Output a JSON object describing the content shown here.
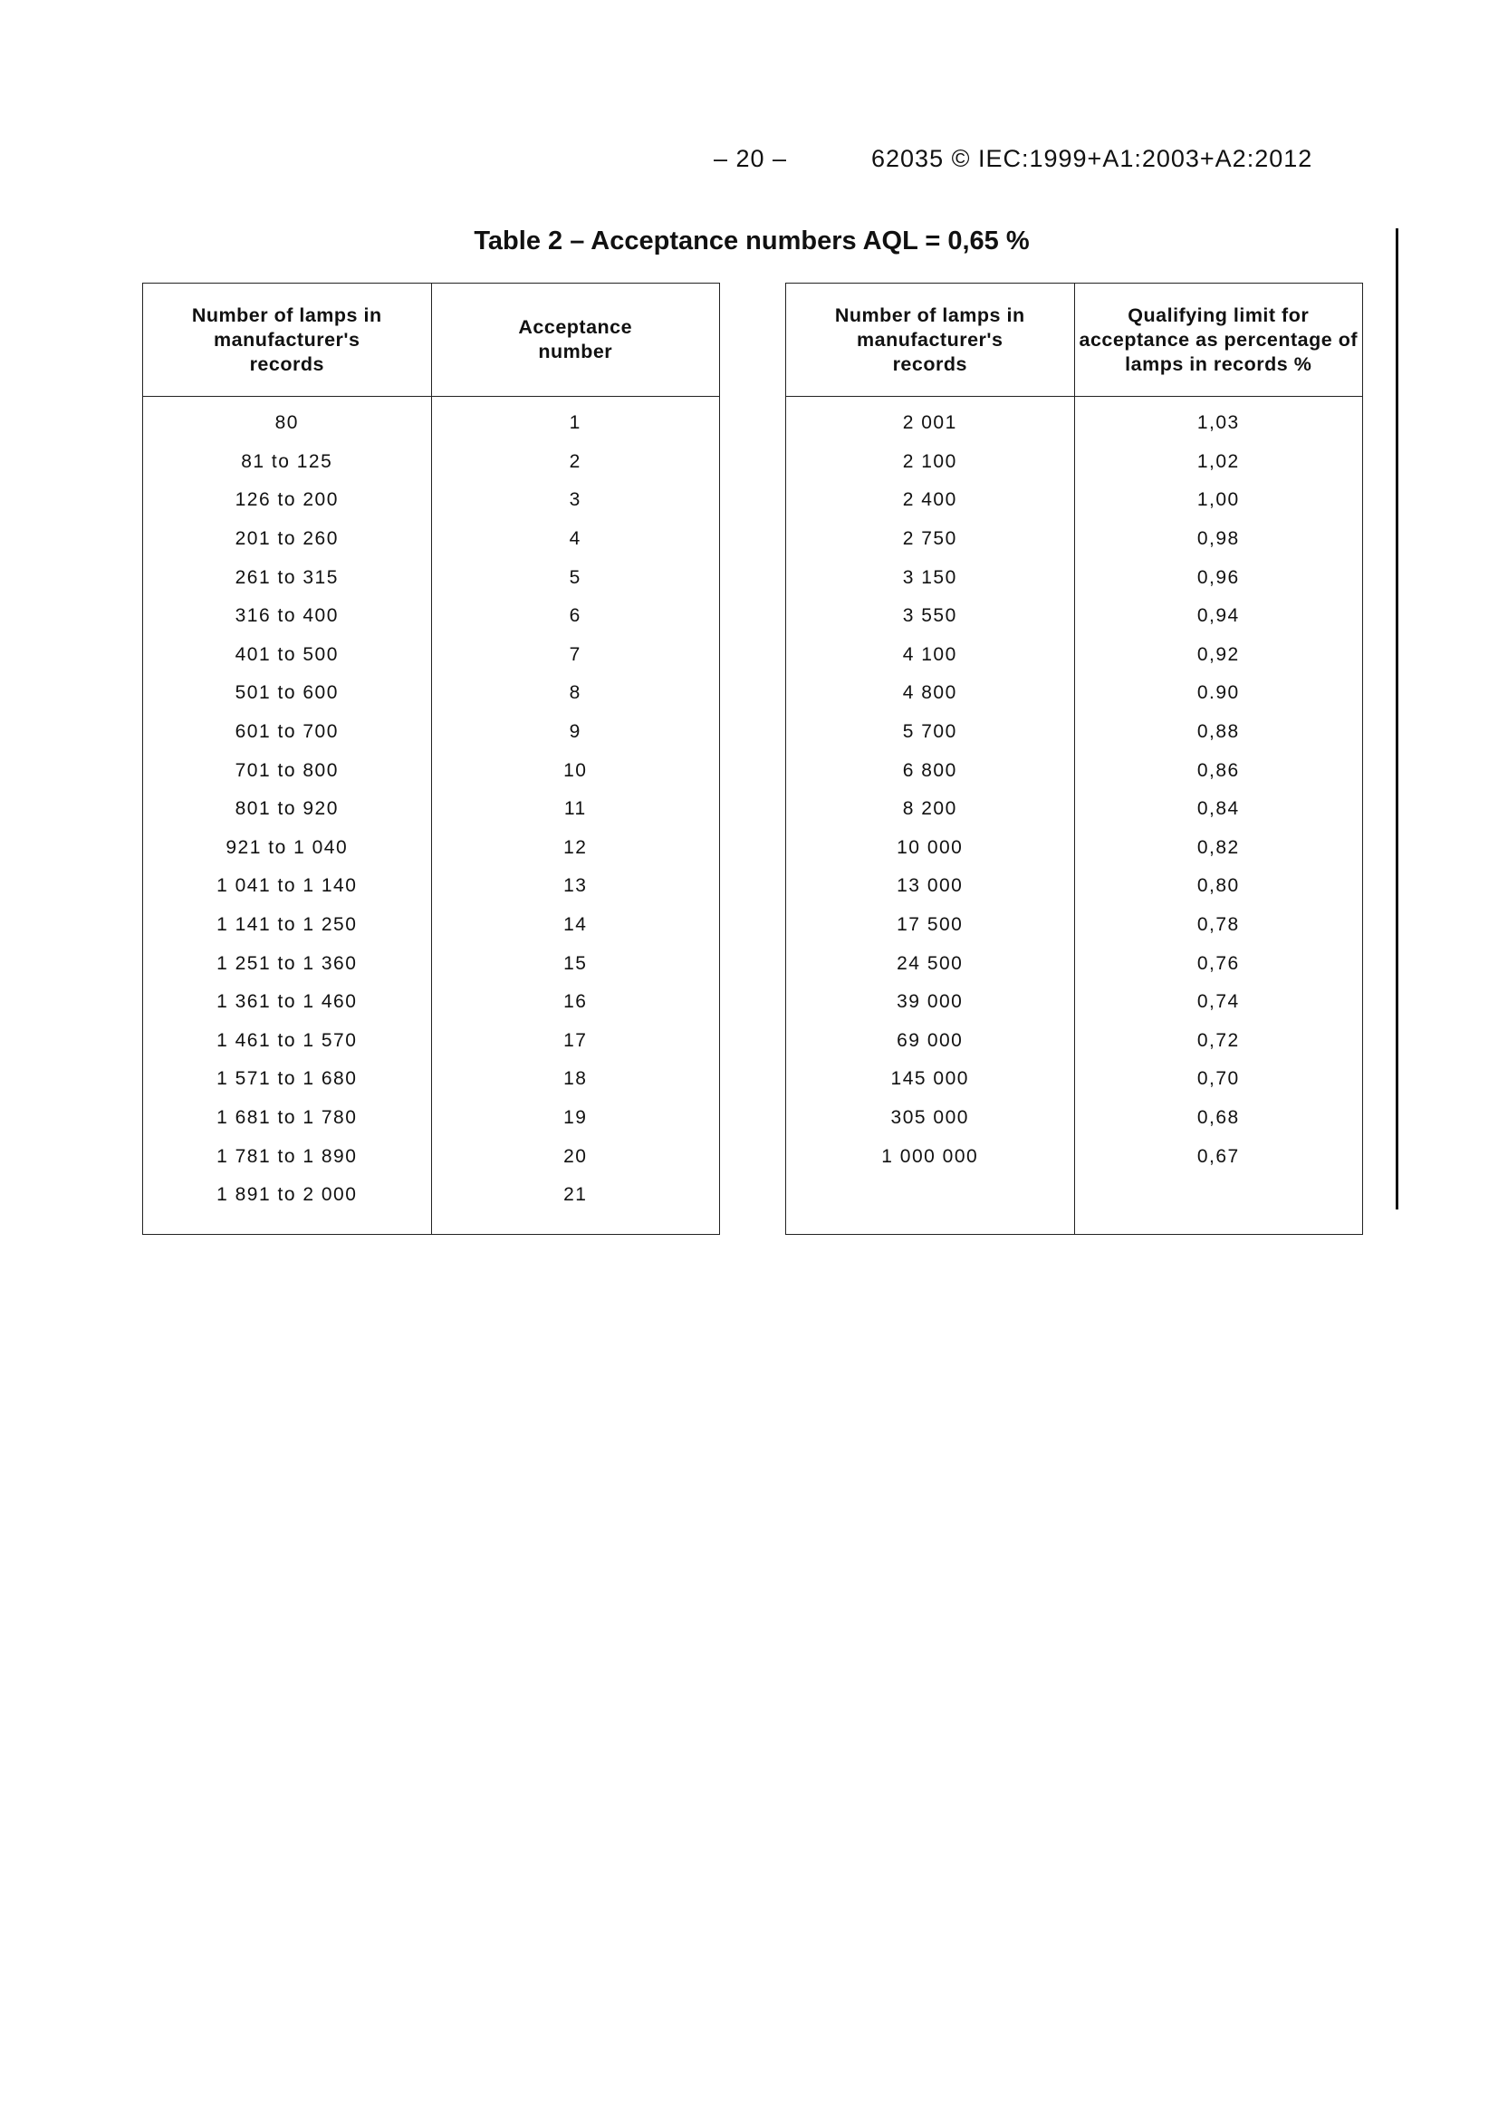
{
  "header": {
    "page_number": "– 20 –",
    "document_reference": "62035 © IEC:1999+A1:2003+A2:2012"
  },
  "title": "Table 2 – Acceptance numbers AQL = 0,65 %",
  "left_table": {
    "columns": [
      "Number of lamps in manufacturer's records",
      "Acceptance number"
    ],
    "rows": [
      [
        "80",
        "1"
      ],
      [
        "81 to 125",
        "2"
      ],
      [
        "126 to 200",
        "3"
      ],
      [
        "201 to 260",
        "4"
      ],
      [
        "261 to 315",
        "5"
      ],
      [
        "316 to 400",
        "6"
      ],
      [
        "401 to 500",
        "7"
      ],
      [
        "501 to 600",
        "8"
      ],
      [
        "601 to 700",
        "9"
      ],
      [
        "701 to 800",
        "10"
      ],
      [
        "801 to 920",
        "11"
      ],
      [
        "921 to 1 040",
        "12"
      ],
      [
        "1 041 to 1 140",
        "13"
      ],
      [
        "1 141 to 1 250",
        "14"
      ],
      [
        "1 251 to 1 360",
        "15"
      ],
      [
        "1 361 to 1 460",
        "16"
      ],
      [
        "1 461 to 1 570",
        "17"
      ],
      [
        "1 571 to 1 680",
        "18"
      ],
      [
        "1 681 to 1 780",
        "19"
      ],
      [
        "1 781 to 1 890",
        "20"
      ],
      [
        "1 891 to 2 000",
        "21"
      ]
    ]
  },
  "right_table": {
    "columns": [
      "Number of lamps in manufacturer's records",
      "Qualifying limit for acceptance as percentage of lamps in records %"
    ],
    "rows": [
      [
        "2 001",
        "1,03"
      ],
      [
        "2 100",
        "1,02"
      ],
      [
        "2 400",
        "1,00"
      ],
      [
        "2 750",
        "0,98"
      ],
      [
        "3 150",
        "0,96"
      ],
      [
        "3 550",
        "0,94"
      ],
      [
        "4 100",
        "0,92"
      ],
      [
        "4 800",
        "0.90"
      ],
      [
        "5 700",
        "0,88"
      ],
      [
        "6 800",
        "0,86"
      ],
      [
        "8 200",
        "0,84"
      ],
      [
        "10 000",
        "0,82"
      ],
      [
        "13 000",
        "0,80"
      ],
      [
        "17 500",
        "0,78"
      ],
      [
        "24 500",
        "0,76"
      ],
      [
        "39 000",
        "0,74"
      ],
      [
        "69 000",
        "0,72"
      ],
      [
        "145 000",
        "0,70"
      ],
      [
        "305 000",
        "0,68"
      ],
      [
        "1 000 000",
        "0,67"
      ]
    ]
  }
}
